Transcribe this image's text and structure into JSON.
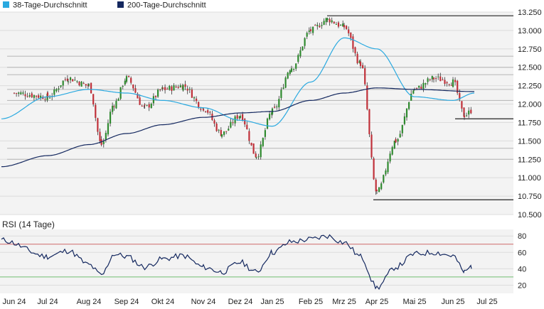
{
  "colors": {
    "background": "#ffffff",
    "plot_bg": "#f3f3f3",
    "gridline": "#dcdcdc",
    "sr_line": "#222222",
    "sr_line_light": "#b5b5b5",
    "candle_up": "#2f8a2f",
    "candle_down": "#c0313a",
    "wick": "#333333",
    "sma38": "#2aa9e0",
    "sma200": "#14285f",
    "rsi": "#14285f",
    "rsi_upper": "#d06a6a",
    "rsi_lower": "#6fbf6f",
    "axis_text": "#222222"
  },
  "legend": [
    {
      "label": "38-Tage-Durchschnitt",
      "color": "#2aa9e0"
    },
    {
      "label": "200-Tage-Durchschnitt",
      "color": "#14285f"
    }
  ],
  "rsi_title": "RSI (14 Tage)",
  "chart_data": [
    {
      "type": "candlestick",
      "title": "",
      "ylim": [
        10.5,
        13.25
      ],
      "y_ticks": [
        "13.250",
        "13.000",
        "12.750",
        "12.500",
        "12.250",
        "12.000",
        "11.750",
        "11.500",
        "11.250",
        "11.000",
        "10.750",
        "10.500"
      ],
      "x_ticks": [
        "Jun 24",
        "Jul 24",
        "Aug 24",
        "Sep 24",
        "Okt 24",
        "Nov 24",
        "Dez 24",
        "Jan 25",
        "Feb 25",
        "Mrz 25",
        "Apr 25",
        "Mai 25",
        "Jun 25",
        "Jul 25"
      ],
      "grid": true,
      "legend_position": "top-left",
      "price_anchors": [
        [
          "Jun 24",
          12.15
        ],
        [
          "Jul 24",
          12.1
        ],
        [
          "Jul 24",
          12.35
        ],
        [
          "Aug 24",
          12.25
        ],
        [
          "Aug 24",
          11.45
        ],
        [
          "Aug 24",
          12.0
        ],
        [
          "Sep 24",
          12.35
        ],
        [
          "Sep 24",
          11.95
        ],
        [
          "Okt 24",
          12.2
        ],
        [
          "Okt 24",
          12.25
        ],
        [
          "Nov 24",
          11.95
        ],
        [
          "Nov 24",
          11.6
        ],
        [
          "Dez 24",
          11.85
        ],
        [
          "Dez 24",
          11.3
        ],
        [
          "Jan 25",
          11.9
        ],
        [
          "Jan 25",
          12.5
        ],
        [
          "Feb 25",
          13.0
        ],
        [
          "Feb 25",
          13.15
        ],
        [
          "Mrz 25",
          13.05
        ],
        [
          "Mrz 25",
          12.55
        ],
        [
          "Apr 25",
          10.8
        ],
        [
          "Apr 25",
          11.5
        ],
        [
          "Mai 25",
          12.2
        ],
        [
          "Mai 25",
          12.35
        ],
        [
          "Jun 25",
          12.3
        ],
        [
          "Jun 25",
          11.85
        ],
        [
          "Jun 25",
          11.95
        ]
      ],
      "series": [
        {
          "name": "38-Tage-Durchschnitt",
          "points": [
            [
              "Jun 24",
              11.8
            ],
            [
              "Jul 24",
              12.1
            ],
            [
              "Aug 24",
              12.2
            ],
            [
              "Sep 24",
              12.15
            ],
            [
              "Okt 24",
              12.05
            ],
            [
              "Nov 24",
              11.95
            ],
            [
              "Dez 24",
              11.78
            ],
            [
              "Jan 25",
              11.7
            ],
            [
              "Feb 25",
              12.3
            ],
            [
              "Mrz 25",
              12.9
            ],
            [
              "Apr 25",
              12.75
            ],
            [
              "Mai 25",
              12.1
            ],
            [
              "Jun 25",
              12.05
            ],
            [
              "Jun 25",
              12.15
            ]
          ]
        },
        {
          "name": "200-Tage-Durchschnitt",
          "points": [
            [
              "Jun 24",
              11.15
            ],
            [
              "Jul 24",
              11.3
            ],
            [
              "Aug 24",
              11.45
            ],
            [
              "Sep 24",
              11.6
            ],
            [
              "Okt 24",
              11.72
            ],
            [
              "Nov 24",
              11.82
            ],
            [
              "Dez 24",
              11.88
            ],
            [
              "Jan 25",
              11.9
            ],
            [
              "Feb 25",
              12.05
            ],
            [
              "Mrz 25",
              12.15
            ],
            [
              "Apr 25",
              12.22
            ],
            [
              "Mai 25",
              12.2
            ],
            [
              "Jun 25",
              12.17
            ]
          ]
        }
      ],
      "horizontal_levels": [
        13.2,
        12.65,
        12.5,
        12.4,
        12.2,
        12.05,
        11.8,
        11.4,
        11.25,
        10.7
      ]
    },
    {
      "type": "line",
      "title": "RSI (14 Tage)",
      "ylim": [
        10,
        88
      ],
      "y_ticks": [
        "80",
        "60",
        "40",
        "20"
      ],
      "reference_lines": [
        70,
        30
      ],
      "series": [
        {
          "name": "",
          "points": [
            [
              "Jun 24",
              75
            ],
            [
              "Jul 24",
              55
            ],
            [
              "Jul 24",
              62
            ],
            [
              "Aug 24",
              45
            ],
            [
              "Aug 24",
              32
            ],
            [
              "Aug 24",
              58
            ],
            [
              "Sep 24",
              55
            ],
            [
              "Sep 24",
              42
            ],
            [
              "Okt 24",
              52
            ],
            [
              "Okt 24",
              56
            ],
            [
              "Nov 24",
              42
            ],
            [
              "Nov 24",
              36
            ],
            [
              "Dez 24",
              48
            ],
            [
              "Dez 24",
              36
            ],
            [
              "Jan 25",
              60
            ],
            [
              "Jan 25",
              73
            ],
            [
              "Feb 25",
              76
            ],
            [
              "Feb 25",
              80
            ],
            [
              "Mrz 25",
              72
            ],
            [
              "Mrz 25",
              55
            ],
            [
              "Apr 25",
              17
            ],
            [
              "Apr 25",
              42
            ],
            [
              "Mai 25",
              58
            ],
            [
              "Mai 25",
              60
            ],
            [
              "Jun 25",
              56
            ],
            [
              "Jun 25",
              36
            ],
            [
              "Jun 25",
              43
            ]
          ]
        }
      ]
    }
  ]
}
